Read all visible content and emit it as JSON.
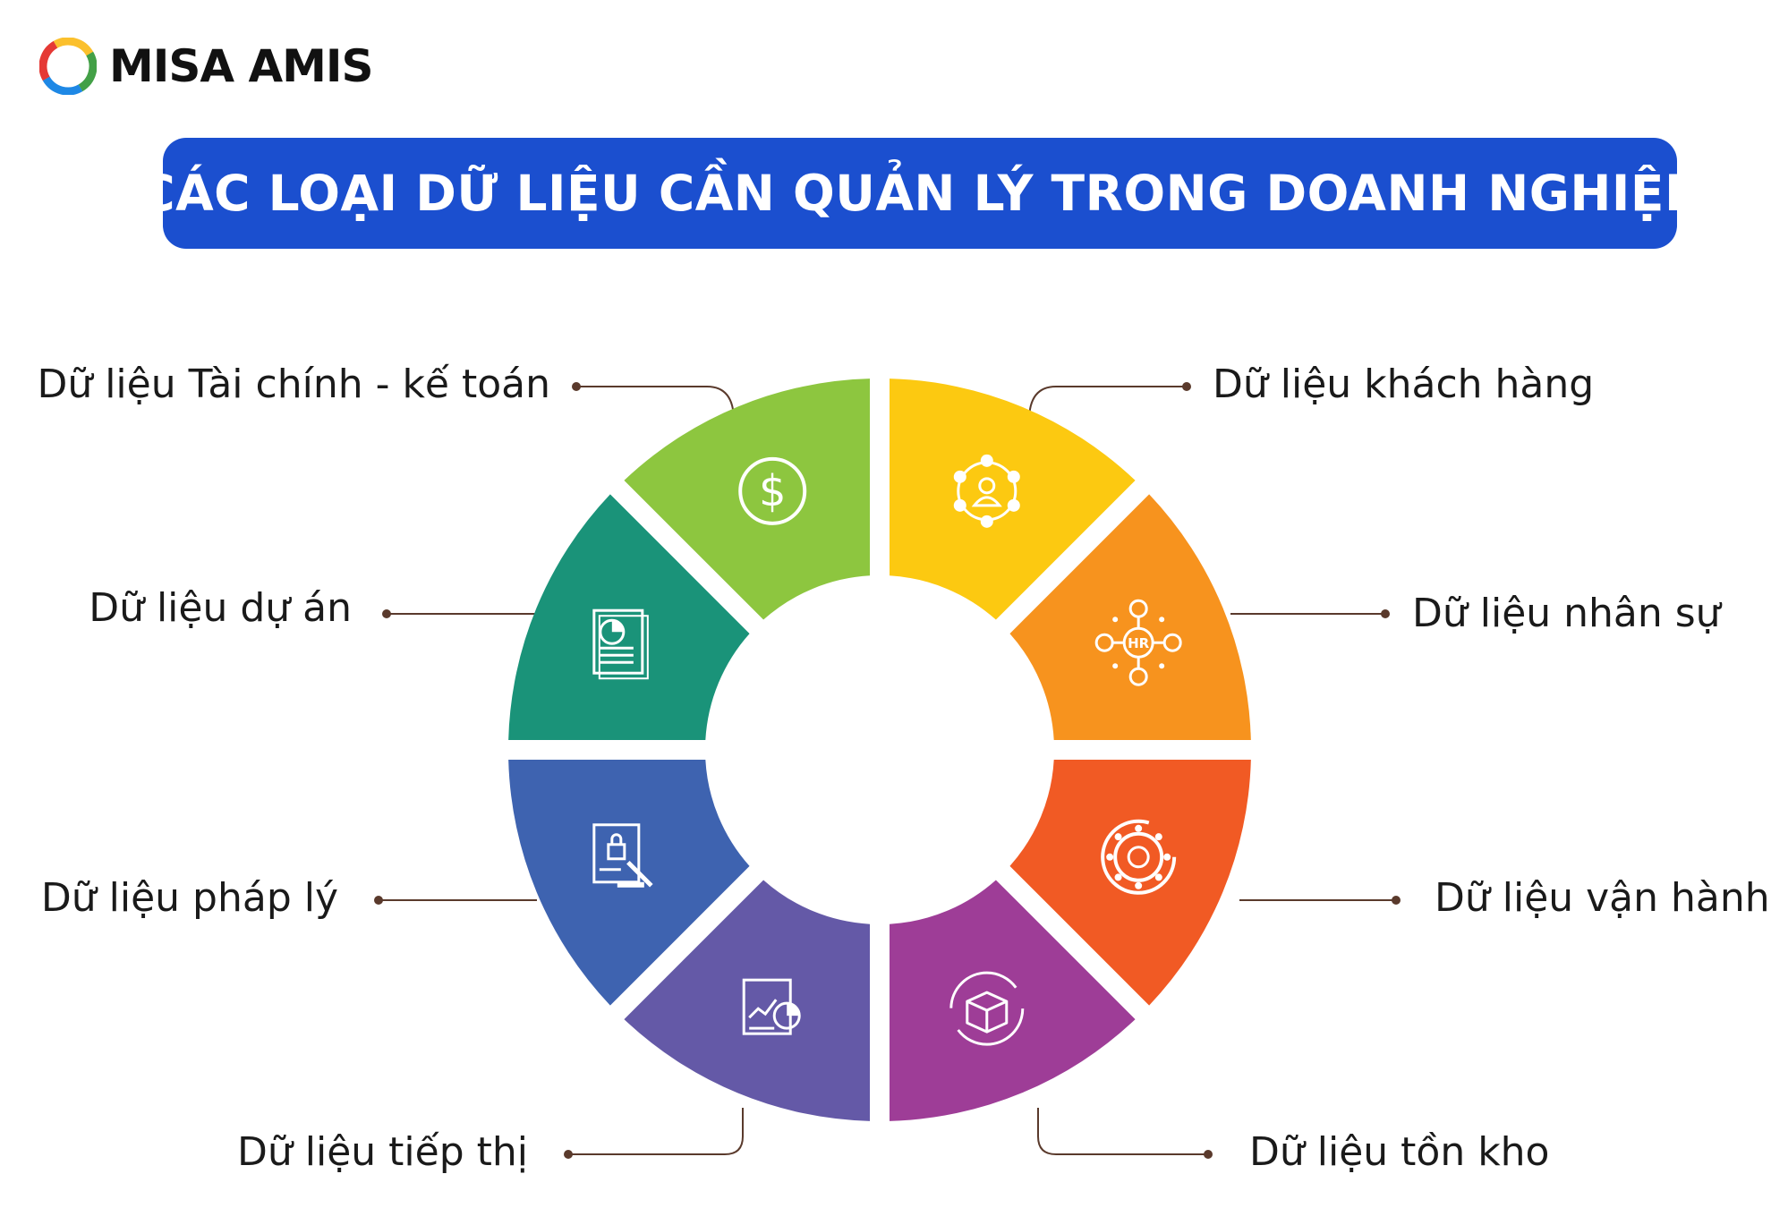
{
  "brand": {
    "name": "MISA AMIS"
  },
  "title": "CÁC LOẠI DỮ LIỆU CẦN QUẢN LÝ TRONG DOANH NGHIỆP",
  "segments": [
    {
      "label": "Dữ liệu Tài chính - kế toán",
      "icon": "dollar-icon",
      "color": "#8dc63f"
    },
    {
      "label": "Dữ liệu khách hàng",
      "icon": "customer-network-icon",
      "color": "#fcc911"
    },
    {
      "label": "Dữ liệu nhân sự",
      "icon": "hr-network-icon",
      "color": "#f7931e"
    },
    {
      "label": "Dữ liệu vận hành",
      "icon": "gear-cycle-icon",
      "color": "#f15a24"
    },
    {
      "label": "Dữ liệu tồn kho",
      "icon": "inventory-box-icon",
      "color": "#9e3d97"
    },
    {
      "label": "Dữ liệu tiếp thị",
      "icon": "marketing-chart-icon",
      "color": "#6459a7"
    },
    {
      "label": "Dữ liệu pháp lý",
      "icon": "legal-document-icon",
      "color": "#3e63b0"
    },
    {
      "label": "Dữ liệu dự án",
      "icon": "project-report-icon",
      "color": "#1a9379"
    }
  ]
}
